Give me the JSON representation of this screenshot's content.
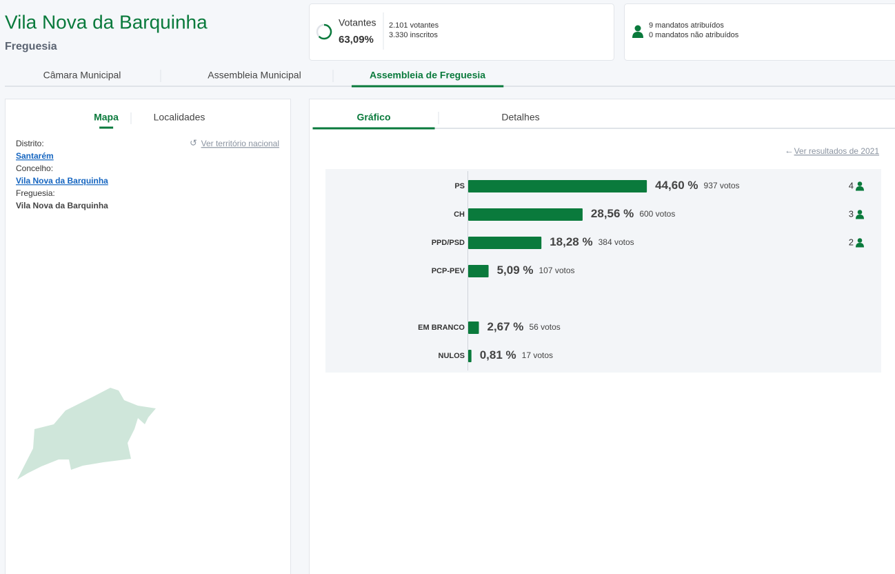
{
  "header": {
    "title": "Vila Nova da Barquinha",
    "subtitle": "Freguesia"
  },
  "turnout": {
    "label": "Votantes",
    "value": 63.09,
    "value_label": "63,09%",
    "voters": "2.101 votantes",
    "registered": "3.330 inscritos"
  },
  "mandates": {
    "assigned": "9 mandatos atribuídos",
    "unassigned": "0 mandatos não atribuídos"
  },
  "main_tabs": {
    "items": [
      "Câmara Municipal",
      "Assembleia Municipal",
      "Assembleia de Freguesia"
    ],
    "active": 2
  },
  "left_panel": {
    "tabs": {
      "items": [
        "Mapa",
        "Localidades"
      ],
      "active": 0
    },
    "link": "Ver território nacional",
    "fields": [
      {
        "label": "Distrito:",
        "value": "Santarém"
      },
      {
        "label": "Concelho:",
        "value": "Vila Nova da Barquinha"
      },
      {
        "label": "Freguesia:",
        "value": "Vila Nova da Barquinha"
      }
    ]
  },
  "right_panel": {
    "tabs": {
      "items": [
        "Gráfico",
        "Detalhes"
      ],
      "active": 0
    },
    "link": "Ver resultados de 2021"
  },
  "chart_data": {
    "type": "bar",
    "categories": [
      "PS",
      "CH",
      "PPD/PSD",
      "PCP-PEV",
      "EM BRANCO",
      "NULOS"
    ],
    "values": [
      44.6,
      28.56,
      18.28,
      5.09,
      2.67,
      0.81
    ],
    "value_labels": [
      "44,60 %",
      "28,56 %",
      "18,28 %",
      "5,09 %",
      "2,67 %",
      "0,81 %"
    ],
    "votes": [
      "937 votos",
      "600 votos",
      "384 votos",
      "107 votos",
      "56 votos",
      "17 votos"
    ],
    "mandates": [
      4,
      3,
      2,
      null,
      null,
      null
    ],
    "color": "#0a7a3c"
  }
}
